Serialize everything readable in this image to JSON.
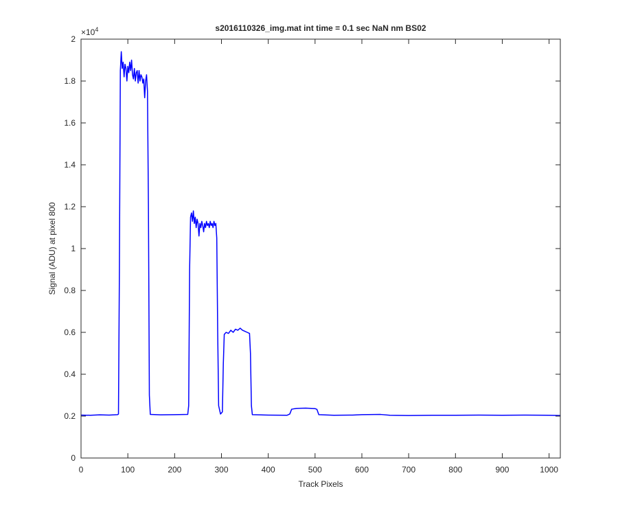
{
  "chart_data": {
    "type": "line",
    "title": "s2016110326_img.mat int time = 0.1 sec  NaN nm BS02",
    "x_label": "Track Pixels",
    "y_label": "Signal (ADU) at pixel 800",
    "y_multiplier_base": "×10",
    "y_multiplier_exponent": "4",
    "xlim": [
      0,
      1024
    ],
    "xticks": [
      0,
      100,
      200,
      300,
      400,
      500,
      600,
      700,
      800,
      900,
      1000
    ],
    "ylim": [
      0,
      2
    ],
    "yticks": [
      0,
      0.2,
      0.4,
      0.6,
      0.8,
      1,
      1.2,
      1.4,
      1.6,
      1.8,
      2
    ],
    "grid": false,
    "series": [
      {
        "color": "#0000ff",
        "x": [
          0,
          20,
          40,
          60,
          78,
          80,
          82,
          84,
          86,
          88,
          90,
          92,
          94,
          96,
          98,
          100,
          102,
          104,
          106,
          108,
          110,
          112,
          114,
          116,
          118,
          120,
          122,
          124,
          126,
          128,
          130,
          132,
          134,
          136,
          138,
          140,
          142,
          144,
          146,
          148,
          170,
          200,
          228,
          230,
          232,
          234,
          236,
          238,
          240,
          242,
          244,
          246,
          248,
          250,
          252,
          254,
          256,
          258,
          260,
          262,
          264,
          266,
          268,
          270,
          272,
          274,
          276,
          278,
          280,
          282,
          284,
          286,
          288,
          290,
          292,
          294,
          298,
          302,
          304,
          306,
          310,
          315,
          320,
          325,
          330,
          335,
          340,
          345,
          350,
          355,
          360,
          362,
          364,
          366,
          400,
          440,
          446,
          450,
          460,
          480,
          500,
          504,
          508,
          540,
          580,
          600,
          640,
          660,
          700,
          750,
          800,
          850,
          900,
          950,
          1000,
          1024
        ],
        "values": [
          0.205,
          0.204,
          0.206,
          0.205,
          0.207,
          0.21,
          0.9,
          1.85,
          1.94,
          1.86,
          1.89,
          1.82,
          1.88,
          1.86,
          1.8,
          1.87,
          1.84,
          1.89,
          1.85,
          1.9,
          1.83,
          1.81,
          1.86,
          1.8,
          1.84,
          1.85,
          1.79,
          1.85,
          1.8,
          1.83,
          1.82,
          1.79,
          1.81,
          1.72,
          1.8,
          1.83,
          1.75,
          1.2,
          0.3,
          0.208,
          0.206,
          0.207,
          0.208,
          0.25,
          0.9,
          1.15,
          1.17,
          1.13,
          1.18,
          1.12,
          1.15,
          1.1,
          1.14,
          1.12,
          1.06,
          1.12,
          1.1,
          1.13,
          1.11,
          1.08,
          1.12,
          1.1,
          1.13,
          1.11,
          1.12,
          1.1,
          1.13,
          1.11,
          1.12,
          1.1,
          1.13,
          1.11,
          1.12,
          1.05,
          0.6,
          0.25,
          0.21,
          0.22,
          0.45,
          0.59,
          0.6,
          0.595,
          0.61,
          0.6,
          0.615,
          0.61,
          0.62,
          0.61,
          0.605,
          0.6,
          0.595,
          0.5,
          0.25,
          0.207,
          0.205,
          0.204,
          0.21,
          0.233,
          0.237,
          0.238,
          0.236,
          0.232,
          0.207,
          0.204,
          0.205,
          0.207,
          0.208,
          0.204,
          0.203,
          0.204,
          0.204,
          0.205,
          0.204,
          0.205,
          0.204,
          0.203
        ]
      }
    ]
  }
}
